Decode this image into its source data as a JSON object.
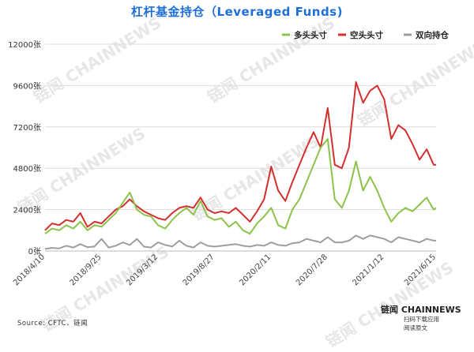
{
  "chart_data": {
    "type": "line",
    "title": "杠杆基金持仓（Leveraged Funds)",
    "ylim": [
      0,
      12000
    ],
    "yticks": [
      0,
      2400,
      4800,
      7200,
      9600,
      12000
    ],
    "ytick_labels": [
      "0张",
      "2400张",
      "4800张",
      "7200张",
      "9600张",
      "12000张"
    ],
    "xlim": [
      "2018-04-10",
      "2021-06-15"
    ],
    "xticks": [
      "2018-04-10",
      "2018-09-25",
      "2019-03-12",
      "2019-08-27",
      "2020-02-11",
      "2020-07-28",
      "2021-01-12",
      "2021-06-15"
    ],
    "xtick_labels": [
      "2018/4/10",
      "2018/9/25",
      "2019/3/12",
      "2019/8/27",
      "2020/2/11",
      "2020/7/28",
      "2021/1/12",
      "2021/6/15"
    ],
    "legend": "top-right",
    "grid": "horizontal",
    "x": [
      "2018-04-10",
      "2018-05-01",
      "2018-05-22",
      "2018-06-12",
      "2018-07-03",
      "2018-07-24",
      "2018-08-14",
      "2018-09-04",
      "2018-09-25",
      "2018-10-16",
      "2018-11-06",
      "2018-11-27",
      "2018-12-18",
      "2019-01-08",
      "2019-01-29",
      "2019-02-19",
      "2019-03-12",
      "2019-04-02",
      "2019-04-23",
      "2019-05-14",
      "2019-06-04",
      "2019-06-25",
      "2019-07-16",
      "2019-08-06",
      "2019-08-27",
      "2019-09-17",
      "2019-10-08",
      "2019-10-29",
      "2019-11-19",
      "2019-12-10",
      "2019-12-31",
      "2020-01-21",
      "2020-02-11",
      "2020-03-03",
      "2020-03-24",
      "2020-04-14",
      "2020-05-05",
      "2020-05-26",
      "2020-06-16",
      "2020-07-07",
      "2020-07-28",
      "2020-08-18",
      "2020-09-08",
      "2020-09-29",
      "2020-10-20",
      "2020-11-10",
      "2020-12-01",
      "2020-12-22",
      "2021-01-12",
      "2021-02-02",
      "2021-02-23",
      "2021-03-16",
      "2021-04-06",
      "2021-04-27",
      "2021-05-18",
      "2021-06-08",
      "2021-06-15"
    ],
    "series": [
      {
        "name": "多头头寸",
        "color": "#8bc34a",
        "values": [
          1000,
          1300,
          1200,
          1500,
          1300,
          1700,
          1200,
          1500,
          1400,
          1800,
          2200,
          2800,
          3400,
          2400,
          2100,
          2000,
          1500,
          1300,
          1800,
          2200,
          2500,
          2100,
          2900,
          2000,
          1800,
          1900,
          1400,
          1700,
          1200,
          1000,
          1600,
          2000,
          2500,
          1500,
          1300,
          2400,
          3000,
          4000,
          5000,
          6000,
          6500,
          3000,
          2500,
          3500,
          5200,
          3500,
          4300,
          3500,
          2500,
          1700,
          2200,
          2500,
          2300,
          2700,
          3100,
          2400,
          2500
        ]
      },
      {
        "name": "空头头寸",
        "color": "#d32f2f",
        "values": [
          1200,
          1600,
          1500,
          1800,
          1700,
          2200,
          1400,
          1700,
          1600,
          2000,
          2400,
          2600,
          3000,
          2600,
          2300,
          2100,
          1900,
          1800,
          2200,
          2500,
          2600,
          2500,
          3100,
          2400,
          2200,
          2300,
          2200,
          2500,
          2100,
          1700,
          2300,
          3000,
          4900,
          3500,
          2900,
          4000,
          5000,
          6000,
          6900,
          6000,
          8300,
          5000,
          4800,
          6000,
          9800,
          8600,
          9300,
          9600,
          8800,
          6500,
          7300,
          7000,
          6200,
          5300,
          5900,
          5000,
          5000
        ]
      },
      {
        "name": "双向持仓",
        "color": "#9e9e9e",
        "values": [
          120,
          180,
          150,
          300,
          200,
          400,
          220,
          260,
          700,
          200,
          300,
          500,
          350,
          700,
          250,
          200,
          500,
          350,
          260,
          600,
          300,
          200,
          500,
          300,
          250,
          300,
          350,
          400,
          300,
          250,
          350,
          300,
          500,
          350,
          300,
          450,
          500,
          700,
          600,
          500,
          800,
          500,
          500,
          600,
          900,
          700,
          900,
          800,
          700,
          500,
          800,
          700,
          600,
          500,
          700,
          600,
          600
        ]
      }
    ]
  },
  "source": "Source: CFTC、链闻",
  "brand": "链闻 CHAINNEWS",
  "brand_sub_1": "扫码下载应用",
  "brand_sub_2": "阅读原文",
  "watermark": "链闻 CHAINNEWS"
}
